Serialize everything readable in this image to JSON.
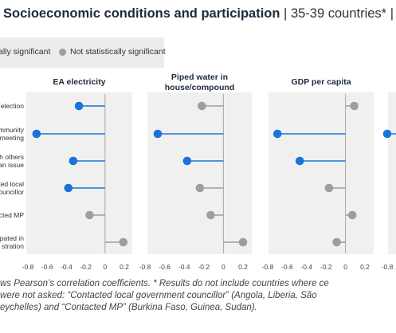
{
  "title": {
    "main": "Socioeconomic conditions and participation",
    "sep": "|",
    "sub": "35-39 countries*",
    "tail": "|"
  },
  "legend": {
    "significant_label": "ally significant",
    "not_significant_label": "Not statistically significant",
    "significant_color": "#1a73d9",
    "not_significant_color": "#9e9e9e"
  },
  "row_labels": [
    [
      "election"
    ],
    [
      "mmunity",
      "meeting"
    ],
    [
      "h others",
      "an issue"
    ],
    [
      "ted local",
      "ouncillor"
    ],
    [
      "tacted MP"
    ],
    [
      "pated in",
      "stration"
    ]
  ],
  "chart_data": [
    {
      "type": "dot",
      "title": "EA electricity",
      "xlim": [
        -0.8,
        0.2
      ],
      "ticks": [
        "-0.8",
        "-0.6",
        "-0.4",
        "-0.2",
        "0",
        "0.2"
      ],
      "values": [
        -0.27,
        -0.71,
        -0.33,
        -0.38,
        -0.16,
        0.19
      ],
      "significant": [
        true,
        true,
        true,
        true,
        false,
        false
      ]
    },
    {
      "type": "dot",
      "title": "Piped water in house/compound",
      "xlim": [
        -0.8,
        0.2
      ],
      "ticks": [
        "-0.8",
        "-0.6",
        "-0.4",
        "-0.2",
        "0",
        "0.2"
      ],
      "values": [
        -0.22,
        -0.67,
        -0.37,
        -0.24,
        -0.13,
        0.2
      ],
      "significant": [
        false,
        true,
        true,
        false,
        false,
        false
      ]
    },
    {
      "type": "dot",
      "title": "GDP per capita",
      "xlim": [
        -0.8,
        0.2
      ],
      "ticks": [
        "-0.8",
        "-0.6",
        "-0.4",
        "-0.2",
        "0",
        "0.2"
      ],
      "values": [
        0.09,
        -0.7,
        -0.47,
        -0.17,
        0.07,
        -0.09
      ],
      "significant": [
        false,
        true,
        true,
        false,
        false,
        false
      ]
    },
    {
      "type": "dot",
      "title": "",
      "xlim": [
        -0.8,
        0.2
      ],
      "ticks": [
        "-0.8"
      ],
      "values": [
        null,
        -0.8,
        null,
        null,
        null,
        null
      ],
      "significant": [
        false,
        true,
        false,
        false,
        false,
        false
      ]
    }
  ],
  "note": {
    "line1": "ws Pearson’s correlation coefficients. * Results do not include countries where ce",
    "line2": "were not asked: “Contacted local government councillor” (Angola, Liberia, São",
    "line3": "eychelles) and “Contacted MP” (Burkina Faso, Guinea, Sudan)."
  }
}
